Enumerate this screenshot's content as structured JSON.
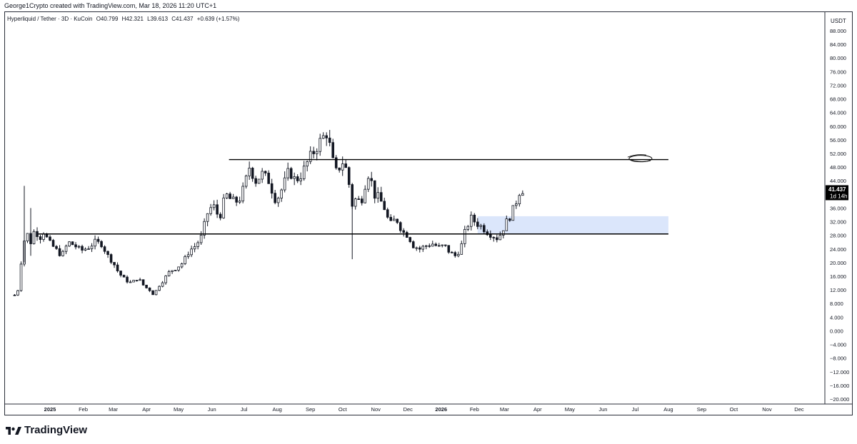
{
  "header": {
    "credit": "George1Crypto created with TradingView.com, Mar 18, 2026 11:20 UTC+1"
  },
  "legend": {
    "symbol": "Hyperliquid / Tether · 3D · KuCoin",
    "open": "O40.799",
    "high": "H42.321",
    "low": "L39.613",
    "close": "C41.437",
    "change": "+0.639 (+1.57%)"
  },
  "price_tag": {
    "price": "41.437",
    "countdown": "1d 14h"
  },
  "brand": {
    "name": "TradingView",
    "icon": "tradingview-logo-icon"
  },
  "colors": {
    "up": "#131722",
    "down": "#131722",
    "line": "#000000",
    "zone": "#dbe6fb",
    "tag": "#000000"
  },
  "chart_data": {
    "type": "candlestick",
    "currency": "USDT",
    "ylim": [
      -20,
      88
    ],
    "y_ticks": [
      "88.000",
      "84.000",
      "80.000",
      "76.000",
      "72.000",
      "68.000",
      "64.000",
      "60.000",
      "56.000",
      "52.000",
      "48.000",
      "44.000",
      "40.000",
      "36.000",
      "32.000",
      "28.000",
      "24.000",
      "20.000",
      "16.000",
      "12.000",
      "8.000",
      "4.000",
      "0.000",
      "−4.000",
      "−8.000",
      "−12.000",
      "−16.000",
      "−20.000"
    ],
    "x_range": [
      "2024-11-20",
      "2026-12-25"
    ],
    "x_ticks": [
      {
        "label": "2025",
        "date": "2025-01-01",
        "bold": true
      },
      {
        "label": "Feb",
        "date": "2025-02-01"
      },
      {
        "label": "Mar",
        "date": "2025-03-01"
      },
      {
        "label": "Apr",
        "date": "2025-04-01"
      },
      {
        "label": "May",
        "date": "2025-05-01"
      },
      {
        "label": "Jun",
        "date": "2025-06-01"
      },
      {
        "label": "Jul",
        "date": "2025-07-01"
      },
      {
        "label": "Aug",
        "date": "2025-08-01"
      },
      {
        "label": "Sep",
        "date": "2025-09-01"
      },
      {
        "label": "Oct",
        "date": "2025-10-01"
      },
      {
        "label": "Nov",
        "date": "2025-11-01"
      },
      {
        "label": "Dec",
        "date": "2025-12-01"
      },
      {
        "label": "2026",
        "date": "2026-01-01",
        "bold": true
      },
      {
        "label": "Feb",
        "date": "2026-02-01"
      },
      {
        "label": "Mar",
        "date": "2026-03-01"
      },
      {
        "label": "Apr",
        "date": "2026-04-01"
      },
      {
        "label": "May",
        "date": "2026-05-01"
      },
      {
        "label": "Jun",
        "date": "2026-06-01"
      },
      {
        "label": "Jul",
        "date": "2026-07-01"
      },
      {
        "label": "Aug",
        "date": "2026-08-01"
      },
      {
        "label": "Sep",
        "date": "2026-09-01"
      },
      {
        "label": "Oct",
        "date": "2026-10-01"
      },
      {
        "label": "Nov",
        "date": "2026-11-01"
      },
      {
        "label": "Dec",
        "date": "2026-12-01"
      }
    ],
    "price_path": [
      [
        "2024-11-29",
        10.5
      ],
      [
        "2024-12-03",
        12.5
      ],
      [
        "2024-12-06",
        24
      ],
      [
        "2024-12-10",
        29
      ],
      [
        "2024-12-14",
        26
      ],
      [
        "2024-12-18",
        30
      ],
      [
        "2024-12-22",
        27
      ],
      [
        "2024-12-26",
        29
      ],
      [
        "2024-12-31",
        26
      ],
      [
        "2025-01-06",
        24
      ],
      [
        "2025-01-12",
        22
      ],
      [
        "2025-01-18",
        26
      ],
      [
        "2025-01-24",
        25
      ],
      [
        "2025-01-30",
        23.5
      ],
      [
        "2025-02-06",
        24.5
      ],
      [
        "2025-02-12",
        26
      ],
      [
        "2025-02-18",
        25.5
      ],
      [
        "2025-02-24",
        22
      ],
      [
        "2025-03-01",
        20
      ],
      [
        "2025-03-06",
        17
      ],
      [
        "2025-03-12",
        15
      ],
      [
        "2025-03-18",
        14
      ],
      [
        "2025-03-24",
        15.5
      ],
      [
        "2025-03-30",
        13
      ],
      [
        "2025-04-04",
        12
      ],
      [
        "2025-04-08",
        10.5
      ],
      [
        "2025-04-12",
        13
      ],
      [
        "2025-04-17",
        15
      ],
      [
        "2025-04-23",
        17.5
      ],
      [
        "2025-04-29",
        18.5
      ],
      [
        "2025-05-05",
        20
      ],
      [
        "2025-05-11",
        23.5
      ],
      [
        "2025-05-17",
        25
      ],
      [
        "2025-05-23",
        28
      ],
      [
        "2025-05-27",
        34
      ],
      [
        "2025-06-02",
        37
      ],
      [
        "2025-06-08",
        33
      ],
      [
        "2025-06-14",
        40
      ],
      [
        "2025-06-20",
        38
      ],
      [
        "2025-06-26",
        38
      ],
      [
        "2025-07-01",
        42
      ],
      [
        "2025-07-06",
        48
      ],
      [
        "2025-07-12",
        44
      ],
      [
        "2025-07-18",
        46
      ],
      [
        "2025-07-24",
        44
      ],
      [
        "2025-07-31",
        38
      ],
      [
        "2025-08-06",
        42
      ],
      [
        "2025-08-12",
        47
      ],
      [
        "2025-08-18",
        44
      ],
      [
        "2025-08-24",
        46
      ],
      [
        "2025-08-30",
        50
      ],
      [
        "2025-09-05",
        53
      ],
      [
        "2025-09-11",
        56
      ],
      [
        "2025-09-16",
        58
      ],
      [
        "2025-09-20",
        53
      ],
      [
        "2025-09-24",
        46
      ],
      [
        "2025-09-28",
        48
      ],
      [
        "2025-10-02",
        50
      ],
      [
        "2025-10-06",
        45
      ],
      [
        "2025-10-10",
        37
      ],
      [
        "2025-10-14",
        39
      ],
      [
        "2025-10-18",
        37.5
      ],
      [
        "2025-10-22",
        43
      ],
      [
        "2025-10-26",
        47
      ],
      [
        "2025-10-30",
        40
      ],
      [
        "2025-11-04",
        39
      ],
      [
        "2025-11-09",
        36
      ],
      [
        "2025-11-14",
        31
      ],
      [
        "2025-11-20",
        33
      ],
      [
        "2025-11-26",
        29
      ],
      [
        "2025-12-01",
        28
      ],
      [
        "2025-12-06",
        25
      ],
      [
        "2025-12-12",
        24
      ],
      [
        "2025-12-18",
        25
      ],
      [
        "2025-12-24",
        25.5
      ],
      [
        "2025-12-30",
        24.5
      ],
      [
        "2026-01-04",
        25
      ],
      [
        "2026-01-09",
        23
      ],
      [
        "2026-01-14",
        22
      ],
      [
        "2026-01-19",
        24
      ],
      [
        "2026-01-24",
        30
      ],
      [
        "2026-01-29",
        33
      ],
      [
        "2026-02-03",
        31.5
      ],
      [
        "2026-02-08",
        30.5
      ],
      [
        "2026-02-13",
        29
      ],
      [
        "2026-02-18",
        28
      ],
      [
        "2026-02-23",
        27
      ],
      [
        "2026-02-27",
        29.5
      ],
      [
        "2026-03-03",
        32
      ],
      [
        "2026-03-07",
        34
      ],
      [
        "2026-03-11",
        37
      ],
      [
        "2026-03-15",
        40.8
      ],
      [
        "2026-03-18",
        41.437
      ]
    ],
    "wicks": [
      {
        "date": "2024-12-08",
        "high": 42.5,
        "low": 20
      },
      {
        "date": "2024-12-14",
        "high": 36,
        "low": 22
      },
      {
        "date": "2025-10-10",
        "high": 39,
        "low": 21
      }
    ],
    "horizontal_lines": [
      {
        "price": 50.2,
        "from": "2025-06-17",
        "to": "2026-08-01"
      },
      {
        "price": 28.4,
        "from": "2024-12-21",
        "to": "2026-08-01"
      }
    ],
    "zone": {
      "from": "2026-02-04",
      "to": "2026-08-01",
      "top": 33.6,
      "bottom": 28.4
    },
    "annotation": {
      "type": "ellipse",
      "date": "2026-07-06",
      "price": 50.5
    }
  }
}
